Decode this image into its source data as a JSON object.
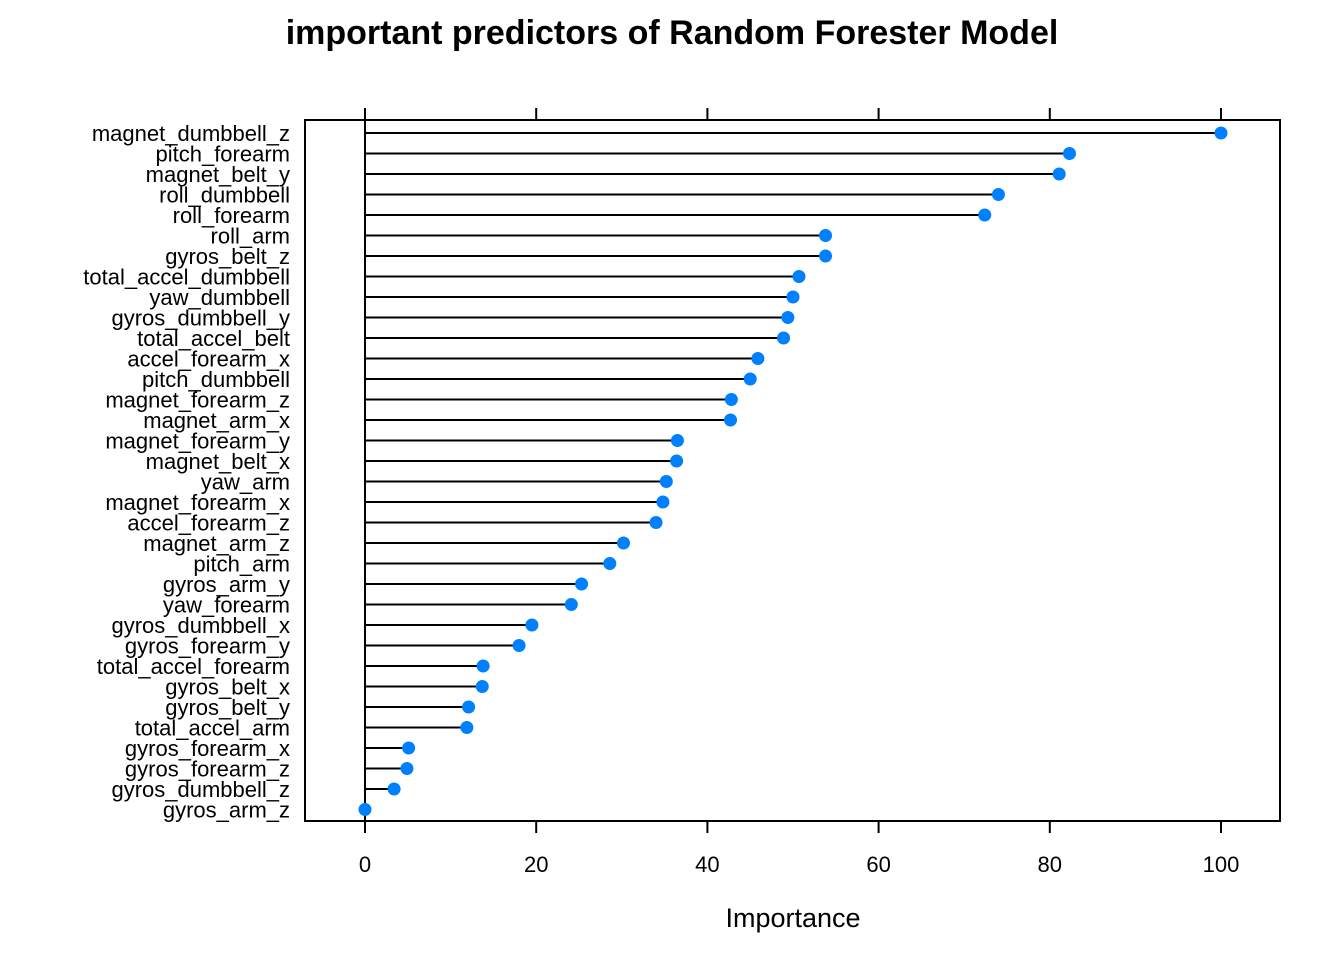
{
  "chart_data": {
    "type": "dot",
    "title": "important predictors of Random Forester Model",
    "xlabel": "Importance",
    "xlim": [
      -7,
      107
    ],
    "x_ticks": [
      0,
      20,
      40,
      60,
      80,
      100
    ],
    "point_color": "#0080ff",
    "categories": [
      "magnet_dumbbell_z",
      "pitch_forearm",
      "magnet_belt_y",
      "roll_dumbbell",
      "roll_forearm",
      "roll_arm",
      "gyros_belt_z",
      "total_accel_dumbbell",
      "yaw_dumbbell",
      "gyros_dumbbell_y",
      "total_accel_belt",
      "accel_forearm_x",
      "pitch_dumbbell",
      "magnet_forearm_z",
      "magnet_arm_x",
      "magnet_forearm_y",
      "magnet_belt_x",
      "yaw_arm",
      "magnet_forearm_x",
      "accel_forearm_z",
      "magnet_arm_z",
      "pitch_arm",
      "gyros_arm_y",
      "yaw_forearm",
      "gyros_dumbbell_x",
      "gyros_forearm_y",
      "total_accel_forearm",
      "gyros_belt_x",
      "gyros_belt_y",
      "total_accel_arm",
      "gyros_forearm_x",
      "gyros_forearm_z",
      "gyros_dumbbell_z",
      "gyros_arm_z"
    ],
    "values": [
      100,
      82.3,
      81.1,
      74.0,
      72.4,
      53.8,
      53.8,
      50.7,
      50.0,
      49.4,
      48.9,
      45.9,
      45.0,
      42.8,
      42.7,
      36.5,
      36.4,
      35.2,
      34.8,
      34.0,
      30.2,
      28.6,
      25.3,
      24.1,
      19.5,
      18.0,
      13.8,
      13.7,
      12.1,
      11.9,
      5.1,
      4.9,
      3.4,
      0
    ]
  }
}
